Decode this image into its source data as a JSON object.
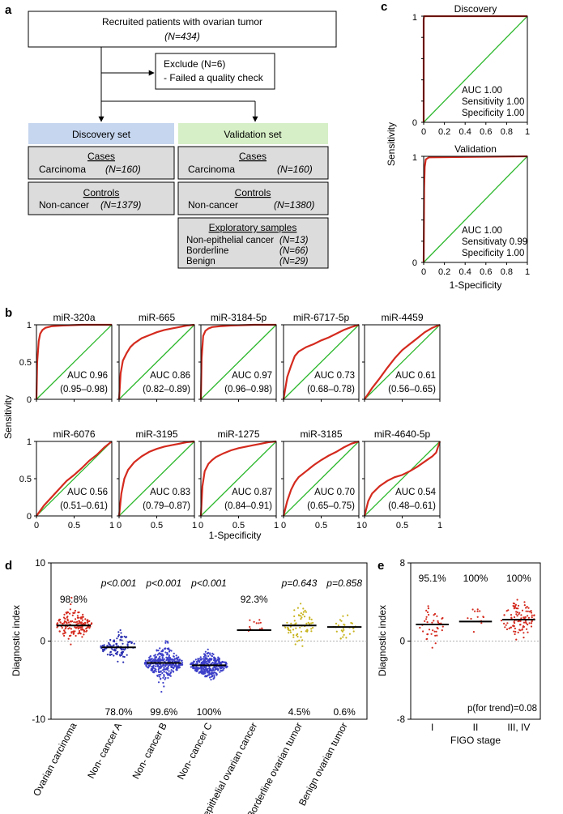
{
  "panel_labels": {
    "a": "a",
    "b": "b",
    "c": "c",
    "d": "d",
    "e": "e"
  },
  "flowchart": {
    "recruited_line1": "Recruited patients with ovarian tumor",
    "recruited_line2": "(N=434)",
    "exclude_line1": "Exclude (N=6)",
    "exclude_line2": "- Failed a quality check",
    "discovery_title": "Discovery set",
    "validation_title": "Validation set",
    "cases_heading": "Cases",
    "controls_heading": "Controls",
    "carcinoma_label": "Carcinoma",
    "noncancer_label": "Non-cancer",
    "discovery_cases_n": "(N=160)",
    "discovery_controls_n": "(N=1379)",
    "validation_cases_n": "(N=160)",
    "validation_controls_n": "(N=1380)",
    "exploratory_heading": "Exploratory samples",
    "exploratory_rows": [
      {
        "label": "Non-epithelial cancer",
        "n": "(N=13)"
      },
      {
        "label": "Borderline",
        "n": "(N=66)"
      },
      {
        "label": "Benign",
        "n": "(N=29)"
      }
    ],
    "discovery_color": "#c6d6ef",
    "validation_color": "#d6efc6",
    "box_fill": "#dcdcdc"
  },
  "chart_data": [
    {
      "panel": "b",
      "type": "line",
      "xlabel": "1-Specificity",
      "ylabel": "Sensitivity",
      "xlim": [
        0,
        1
      ],
      "ylim": [
        0,
        1
      ],
      "ticks": [
        "0",
        "0.5",
        "1"
      ],
      "auc_prefix": "AUC",
      "series": [
        {
          "name": "miR-320a",
          "auc": "AUC 0.96",
          "ci": "(0.95–0.98)",
          "x": [
            0,
            0.01,
            0.03,
            0.05,
            0.08,
            0.12,
            0.2,
            0.35,
            0.6,
            1
          ],
          "y": [
            0,
            0.5,
            0.78,
            0.88,
            0.93,
            0.96,
            0.98,
            0.99,
            1,
            1
          ]
        },
        {
          "name": "miR-665",
          "auc": "AUC 0.86",
          "ci": "(0.82–0.89)",
          "x": [
            0,
            0.02,
            0.05,
            0.1,
            0.15,
            0.2,
            0.3,
            0.4,
            0.5,
            0.6,
            0.7,
            0.8,
            0.9,
            1
          ],
          "y": [
            0,
            0.35,
            0.52,
            0.62,
            0.7,
            0.75,
            0.82,
            0.86,
            0.9,
            0.93,
            0.95,
            0.97,
            0.99,
            1
          ]
        },
        {
          "name": "miR-3184-5p",
          "auc": "AUC 0.97",
          "ci": "(0.96–0.98)",
          "x": [
            0,
            0.01,
            0.03,
            0.06,
            0.1,
            0.15,
            0.25,
            0.4,
            0.7,
            1
          ],
          "y": [
            0,
            0.55,
            0.85,
            0.92,
            0.95,
            0.97,
            0.98,
            0.99,
            1,
            1
          ]
        },
        {
          "name": "miR-6717-5p",
          "auc": "AUC 0.73",
          "ci": "(0.68–0.78)",
          "x": [
            0,
            0.05,
            0.1,
            0.15,
            0.2,
            0.3,
            0.4,
            0.5,
            0.6,
            0.7,
            0.8,
            0.9,
            1
          ],
          "y": [
            0,
            0.3,
            0.45,
            0.58,
            0.64,
            0.7,
            0.74,
            0.79,
            0.83,
            0.88,
            0.93,
            0.97,
            1
          ]
        },
        {
          "name": "miR-4459",
          "auc": "AUC 0.61",
          "ci": "(0.56–0.65)",
          "x": [
            0,
            0.1,
            0.2,
            0.3,
            0.4,
            0.5,
            0.6,
            0.7,
            0.8,
            0.9,
            1
          ],
          "y": [
            0,
            0.15,
            0.28,
            0.42,
            0.55,
            0.66,
            0.74,
            0.82,
            0.9,
            0.96,
            1
          ]
        },
        {
          "name": "miR-6076",
          "auc": "AUC 0.56",
          "ci": "(0.51–0.61)",
          "x": [
            0,
            0.1,
            0.2,
            0.3,
            0.4,
            0.5,
            0.6,
            0.7,
            0.8,
            0.9,
            1
          ],
          "y": [
            0,
            0.14,
            0.25,
            0.36,
            0.47,
            0.55,
            0.64,
            0.74,
            0.82,
            0.92,
            1
          ]
        },
        {
          "name": "miR-3195",
          "auc": "AUC 0.83",
          "ci": "(0.79–0.87)",
          "x": [
            0,
            0.03,
            0.07,
            0.12,
            0.2,
            0.3,
            0.4,
            0.5,
            0.6,
            0.7,
            0.8,
            0.9,
            1
          ],
          "y": [
            0,
            0.3,
            0.5,
            0.62,
            0.72,
            0.8,
            0.86,
            0.9,
            0.93,
            0.95,
            0.97,
            0.99,
            1
          ]
        },
        {
          "name": "miR-1275",
          "auc": "AUC 0.87",
          "ci": "(0.84–0.91)",
          "x": [
            0,
            0.02,
            0.05,
            0.1,
            0.15,
            0.2,
            0.3,
            0.4,
            0.5,
            0.6,
            0.7,
            0.8,
            0.9,
            1
          ],
          "y": [
            0,
            0.4,
            0.6,
            0.7,
            0.75,
            0.79,
            0.84,
            0.88,
            0.91,
            0.93,
            0.95,
            0.97,
            0.99,
            1
          ]
        },
        {
          "name": "miR-3185",
          "auc": "AUC 0.70",
          "ci": "(0.65–0.75)",
          "x": [
            0,
            0.05,
            0.1,
            0.15,
            0.2,
            0.3,
            0.4,
            0.5,
            0.6,
            0.7,
            0.8,
            0.9,
            1
          ],
          "y": [
            0,
            0.2,
            0.35,
            0.45,
            0.52,
            0.6,
            0.68,
            0.75,
            0.81,
            0.86,
            0.92,
            0.97,
            1
          ]
        },
        {
          "name": "miR-4640-5p",
          "auc": "AUC 0.54",
          "ci": "(0.48–0.61)",
          "x": [
            0,
            0.05,
            0.1,
            0.2,
            0.3,
            0.4,
            0.5,
            0.6,
            0.7,
            0.8,
            0.9,
            0.95,
            1
          ],
          "y": [
            0,
            0.2,
            0.3,
            0.4,
            0.47,
            0.52,
            0.55,
            0.6,
            0.66,
            0.73,
            0.8,
            0.85,
            1
          ]
        }
      ]
    },
    {
      "panel": "c",
      "type": "line",
      "xlabel": "1-Specificity",
      "ylabel": "Sensitivity",
      "xlim": [
        0,
        1
      ],
      "ylim": [
        0,
        1
      ],
      "ticks": [
        "0",
        "0.2",
        "0.4",
        "0.6",
        "0.8",
        "1"
      ],
      "series": [
        {
          "name": "Discovery",
          "lines": [
            "AUC 1.00",
            "Sensitivity 1.00",
            "Specificity 1.00"
          ],
          "x": [
            0,
            0,
            0.005,
            1
          ],
          "y": [
            0,
            0.97,
            1,
            1
          ]
        },
        {
          "name": "Validation",
          "lines": [
            "AUC 1.00",
            "Sensitivaty 0.99",
            "Specificity 1.00"
          ],
          "x": [
            0,
            0.005,
            0.01,
            0.02,
            0.05,
            1
          ],
          "y": [
            0,
            0.7,
            0.9,
            0.97,
            0.99,
            1
          ]
        }
      ]
    },
    {
      "panel": "d",
      "type": "scatter",
      "ylabel": "Diagnostic index",
      "ylim": [
        -10,
        10
      ],
      "yticks": [
        "10",
        "0",
        "-10"
      ],
      "groups": [
        {
          "name": "Ovarian carcinoma",
          "median": 2,
          "n": 160,
          "spread": 1.3,
          "color": "#d42a1e",
          "top_label": "98.8%",
          "bottom_label": ""
        },
        {
          "name": "Non- cancer A",
          "median": -0.8,
          "n": 110,
          "spread": 1.1,
          "color": "#2a2fb0",
          "top_label": "p<0.001",
          "bottom_label": "78.0%"
        },
        {
          "name": "Non- cancer B",
          "median": -2.8,
          "n": 330,
          "spread": 1.3,
          "color": "#3c3fc8",
          "top_label": "p<0.001",
          "bottom_label": "99.6%"
        },
        {
          "name": "Non- cancer C",
          "median": -3.1,
          "n": 330,
          "spread": 1.0,
          "color": "#3c3fc8",
          "top_label": "p<0.001",
          "bottom_label": "100%"
        },
        {
          "name": "Non-epithelial ovarian cancer",
          "median": 1.4,
          "n": 13,
          "spread": 1.4,
          "color": "#d42a1e",
          "top_label": "92.3%",
          "bottom_label": ""
        },
        {
          "name": "Borderline ovarian tumor",
          "median": 2.0,
          "n": 66,
          "spread": 1.6,
          "color": "#c8b41e",
          "top_label": "p=0.643",
          "bottom_label": "4.5%"
        },
        {
          "name": "Benign ovarian tumor",
          "median": 1.8,
          "n": 29,
          "spread": 1.0,
          "color": "#c8b41e",
          "top_label": "p=0.858",
          "bottom_label": "0.6%"
        }
      ]
    },
    {
      "panel": "e",
      "type": "scatter",
      "ylabel": "Diagnostic index",
      "xlabel": "FIGO stage",
      "ylim": [
        -8,
        8
      ],
      "yticks": [
        "8",
        "0",
        "-8"
      ],
      "p_trend_label": "p(for trend)=0.08",
      "groups": [
        {
          "name": "I",
          "median": 1.7,
          "n": 40,
          "spread": 1.3,
          "color": "#d42a1e",
          "top_label": "95.1%"
        },
        {
          "name": "II",
          "median": 2.0,
          "n": 14,
          "spread": 1.0,
          "color": "#d42a1e",
          "top_label": "100%"
        },
        {
          "name": "III, IV",
          "median": 2.2,
          "n": 100,
          "spread": 1.3,
          "color": "#d42a1e",
          "top_label": "100%"
        }
      ]
    }
  ]
}
